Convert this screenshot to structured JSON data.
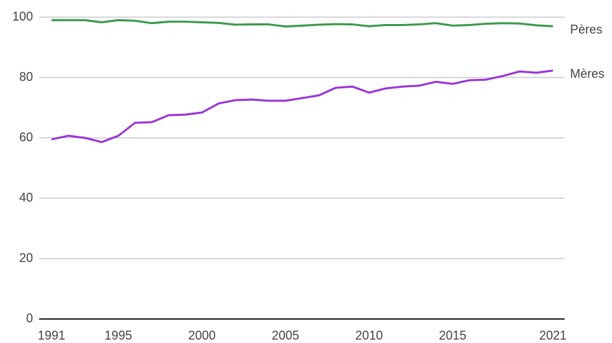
{
  "chart_data": {
    "type": "line",
    "x": [
      1991,
      1992,
      1993,
      1994,
      1995,
      1996,
      1997,
      1998,
      1999,
      2000,
      2001,
      2002,
      2003,
      2004,
      2005,
      2006,
      2007,
      2008,
      2009,
      2010,
      2011,
      2012,
      2013,
      2014,
      2015,
      2016,
      2017,
      2018,
      2019,
      2020,
      2021
    ],
    "series": [
      {
        "name": "Pères",
        "color": "#3a9a4a",
        "values": [
          99,
          99,
          99,
          98.3,
          99,
          98.8,
          98,
          98.5,
          98.5,
          98.3,
          98.1,
          97.5,
          97.6,
          97.6,
          96.9,
          97.2,
          97.5,
          97.7,
          97.6,
          97,
          97.4,
          97.4,
          97.6,
          98,
          97.2,
          97.4,
          97.8,
          98,
          97.9,
          97.3,
          97
        ]
      },
      {
        "name": "Mères",
        "color": "#9b35d8",
        "values": [
          59.5,
          60.7,
          60,
          58.6,
          60.7,
          65,
          65.2,
          67.5,
          67.7,
          68.4,
          71.4,
          72.5,
          72.7,
          72.3,
          72.3,
          73.2,
          74.1,
          76.6,
          77,
          75,
          76.4,
          77,
          77.3,
          78.6,
          77.9,
          79.1,
          79.3,
          80.5,
          82,
          81.6,
          82.3
        ]
      }
    ],
    "xlim": [
      1991,
      2021
    ],
    "xticks": [
      1991,
      1995,
      2000,
      2005,
      2010,
      2015,
      2021
    ],
    "ylim": [
      0,
      100
    ],
    "yticks": [
      0,
      20,
      40,
      60,
      80,
      100
    ],
    "grid": true
  }
}
